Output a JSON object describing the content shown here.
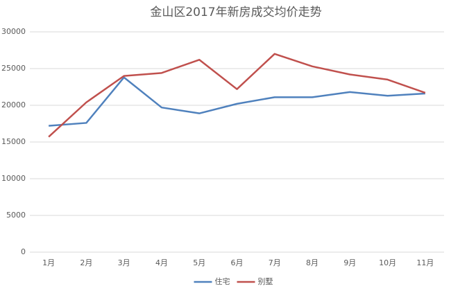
{
  "chart_data": {
    "type": "line",
    "title": "金山区2017年新房成交均价走势",
    "categories": [
      "1月",
      "2月",
      "3月",
      "4月",
      "5月",
      "6月",
      "7月",
      "8月",
      "9月",
      "10月",
      "11月"
    ],
    "series": [
      {
        "name": "住宅",
        "color": "#4f81bd",
        "values": [
          17200,
          17600,
          23800,
          19700,
          18900,
          20200,
          21100,
          21100,
          21800,
          21300,
          21600
        ]
      },
      {
        "name": "别墅",
        "color": "#c0504d",
        "values": [
          15700,
          20400,
          24000,
          24400,
          26200,
          22200,
          27000,
          25300,
          24200,
          23500,
          21700
        ]
      }
    ],
    "ylim": [
      0,
      30000
    ],
    "yticks": [
      0,
      5000,
      10000,
      15000,
      20000,
      25000,
      30000
    ],
    "grid": true,
    "legend": "bottom"
  }
}
